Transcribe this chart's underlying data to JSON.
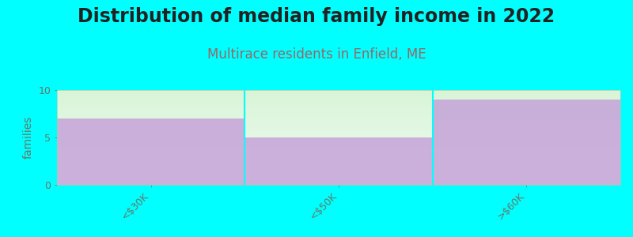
{
  "title": "Distribution of median family income in 2022",
  "subtitle": "Multirace residents in Enfield, ME",
  "categories": [
    "<$30K",
    "<$50K",
    ">$60K"
  ],
  "values": [
    7,
    5,
    9
  ],
  "bar_color": "#c4a0d8",
  "bg_top_color": "#f0faf0",
  "bg_bottom_color": "#d8f5d8",
  "background_color": "#00ffff",
  "ylabel": "families",
  "ylim": [
    0,
    10
  ],
  "yticks": [
    0,
    5,
    10
  ],
  "title_fontsize": 17,
  "subtitle_fontsize": 12,
  "subtitle_color": "#996666",
  "title_color": "#222222",
  "tick_label_color": "#667766",
  "axis_label_color": "#667766",
  "bar_alpha": 0.82
}
